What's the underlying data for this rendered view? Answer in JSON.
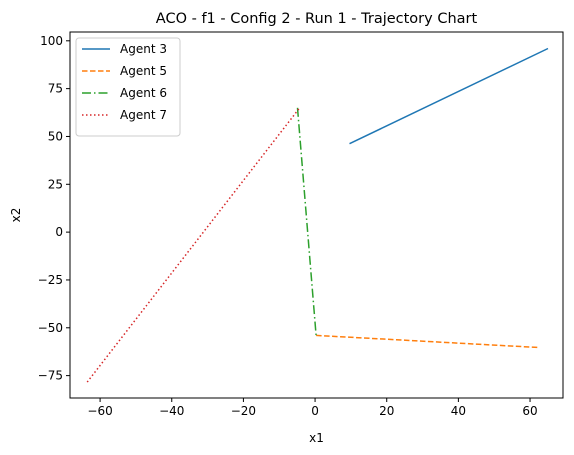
{
  "chart_data": {
    "type": "line",
    "title": "ACO - f1 - Config 2 - Run 1 - Trajectory Chart",
    "xlabel": "x1",
    "ylabel": "x2",
    "xlim": [
      -68.4,
      69.2
    ],
    "ylim": [
      -86.7,
      104.6
    ],
    "xticks": [
      -60,
      -40,
      -20,
      0,
      20,
      40,
      60
    ],
    "yticks": [
      -75,
      -50,
      -25,
      0,
      25,
      50,
      75,
      100
    ],
    "xtick_labels": [
      "−60",
      "−40",
      "−20",
      "0",
      "20",
      "40",
      "60"
    ],
    "ytick_labels": [
      "−75",
      "−50",
      "−25",
      "0",
      "25",
      "50",
      "75",
      "100"
    ],
    "grid": false,
    "legend_position": "upper left",
    "series": [
      {
        "name": "Agent 3",
        "color": "#1f77b4",
        "dash": "solid",
        "points": [
          [
            9.6,
            46.2
          ],
          [
            65.0,
            96.0
          ]
        ]
      },
      {
        "name": "Agent 5",
        "color": "#ff7f0e",
        "dash": "dashed",
        "points": [
          [
            0.3,
            -54.0
          ],
          [
            62.4,
            -60.3
          ]
        ]
      },
      {
        "name": "Agent 6",
        "color": "#2ca02c",
        "dash": "dashdot",
        "points": [
          [
            -4.9,
            65.0
          ],
          [
            0.3,
            -54.0
          ]
        ]
      },
      {
        "name": "Agent 7",
        "color": "#d62728",
        "dash": "dotted",
        "points": [
          [
            -63.6,
            -78.4
          ],
          [
            -4.3,
            65.0
          ]
        ]
      }
    ]
  }
}
